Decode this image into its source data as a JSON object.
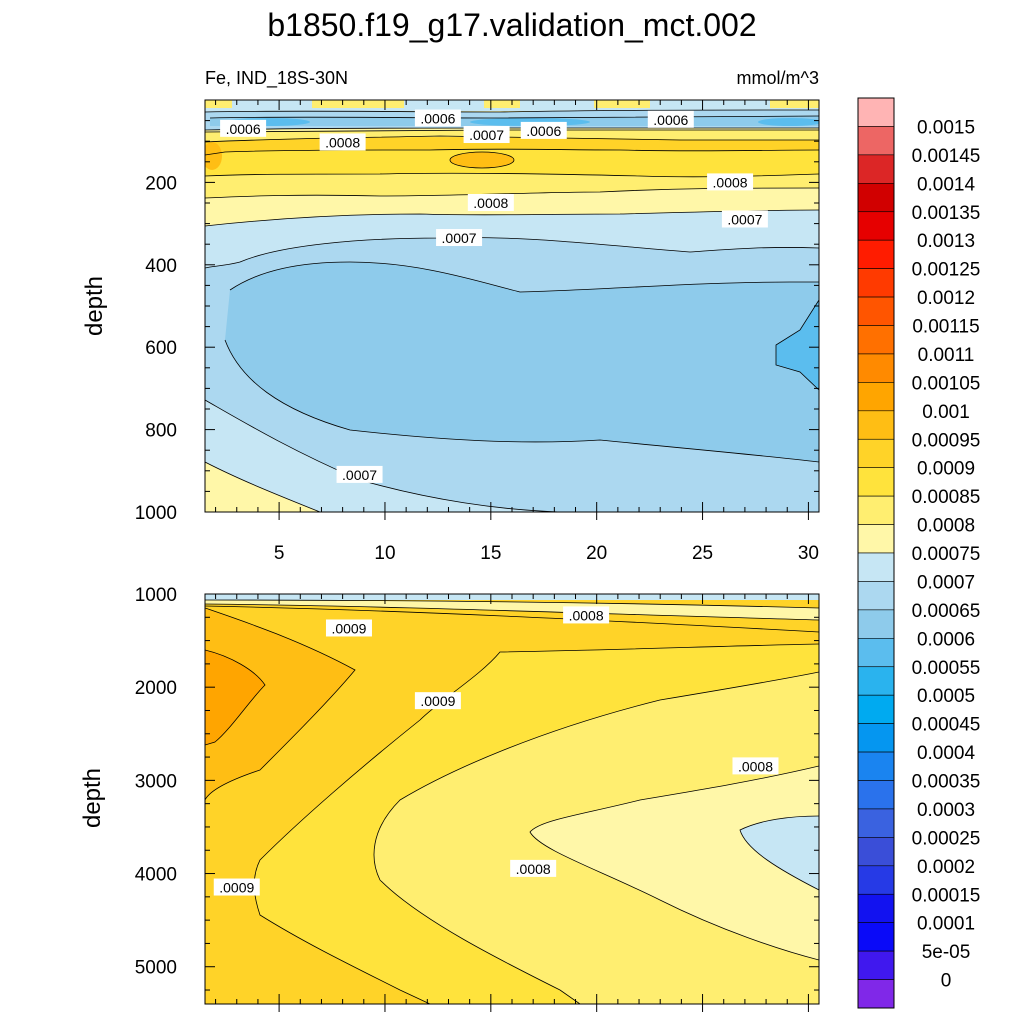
{
  "title": "b1850.f19_g17.validation_mct.002",
  "left_label": "Fe, IND_18S-30N",
  "right_label": "mmol/m^3",
  "chart_data": [
    {
      "type": "contour",
      "panel": "upper",
      "ylabel": "depth",
      "y_reversed": true,
      "xlim": [
        1.5,
        30.5
      ],
      "ylim": [
        1000,
        0
      ],
      "xticks": [
        5,
        10,
        15,
        20,
        25,
        30
      ],
      "yticks": [
        200,
        400,
        600,
        800,
        1000
      ],
      "contour_labels": [
        {
          "text": ".0006",
          "x": 3.3,
          "y": 70
        },
        {
          "text": ".0006",
          "x": 12.5,
          "y": 45
        },
        {
          "text": ".0006",
          "x": 17.5,
          "y": 75
        },
        {
          "text": ".0006",
          "x": 23.5,
          "y": 48
        },
        {
          "text": ".0008",
          "x": 8.0,
          "y": 103
        },
        {
          "text": ".0007",
          "x": 14.8,
          "y": 85
        },
        {
          "text": ".0008",
          "x": 15.0,
          "y": 250
        },
        {
          "text": ".0008",
          "x": 26.3,
          "y": 200
        },
        {
          "text": ".0007",
          "x": 13.5,
          "y": 335
        },
        {
          "text": ".0007",
          "x": 27.0,
          "y": 290
        },
        {
          "text": ".0007",
          "x": 8.8,
          "y": 910
        }
      ]
    },
    {
      "type": "contour",
      "panel": "lower",
      "ylabel": "depth",
      "y_reversed": true,
      "xlim": [
        1.5,
        30.5
      ],
      "ylim": [
        5400,
        1000
      ],
      "yticks": [
        1000,
        2000,
        3000,
        4000,
        5000
      ],
      "contour_labels": [
        {
          "text": ".0008",
          "x": 19.5,
          "y": 1230
        },
        {
          "text": ".0009",
          "x": 8.3,
          "y": 1370
        },
        {
          "text": ".0009",
          "x": 12.5,
          "y": 2150
        },
        {
          "text": ".0008",
          "x": 27.5,
          "y": 2850
        },
        {
          "text": ".0008",
          "x": 17.0,
          "y": 3950
        },
        {
          "text": ".0009",
          "x": 3.0,
          "y": 4150
        }
      ]
    }
  ],
  "colorbar": {
    "labels": [
      "0.0015",
      "0.00145",
      "0.0014",
      "0.00135",
      "0.0013",
      "0.00125",
      "0.0012",
      "0.00115",
      "0.0011",
      "0.00105",
      "0.001",
      "0.00095",
      "0.0009",
      "0.00085",
      "0.0008",
      "0.00075",
      "0.0007",
      "0.00065",
      "0.0006",
      "0.00055",
      "0.0005",
      "0.00045",
      "0.0004",
      "0.00035",
      "0.0003",
      "0.00025",
      "0.0002",
      "0.00015",
      "0.0001",
      "5e-05",
      "0"
    ],
    "colors": [
      "#ffb4b4",
      "#ed6664",
      "#dc2626",
      "#d10000",
      "#e60000",
      "#ff1c00",
      "#ff3a00",
      "#ff5500",
      "#ff7000",
      "#ff8a00",
      "#ffa500",
      "#ffbe14",
      "#ffd328",
      "#ffe33c",
      "#ffee70",
      "#fff7a8",
      "#c6e6f4",
      "#acd8f0",
      "#8ecbeb",
      "#5bbdee",
      "#2ab3ee",
      "#00aaf0",
      "#0596f0",
      "#1a84f0",
      "#2a72ec",
      "#3a62e0",
      "#3a4ed8",
      "#263ae6",
      "#1212f0",
      "#0a0af8",
      "#4018ee",
      "#8028e8"
    ]
  }
}
